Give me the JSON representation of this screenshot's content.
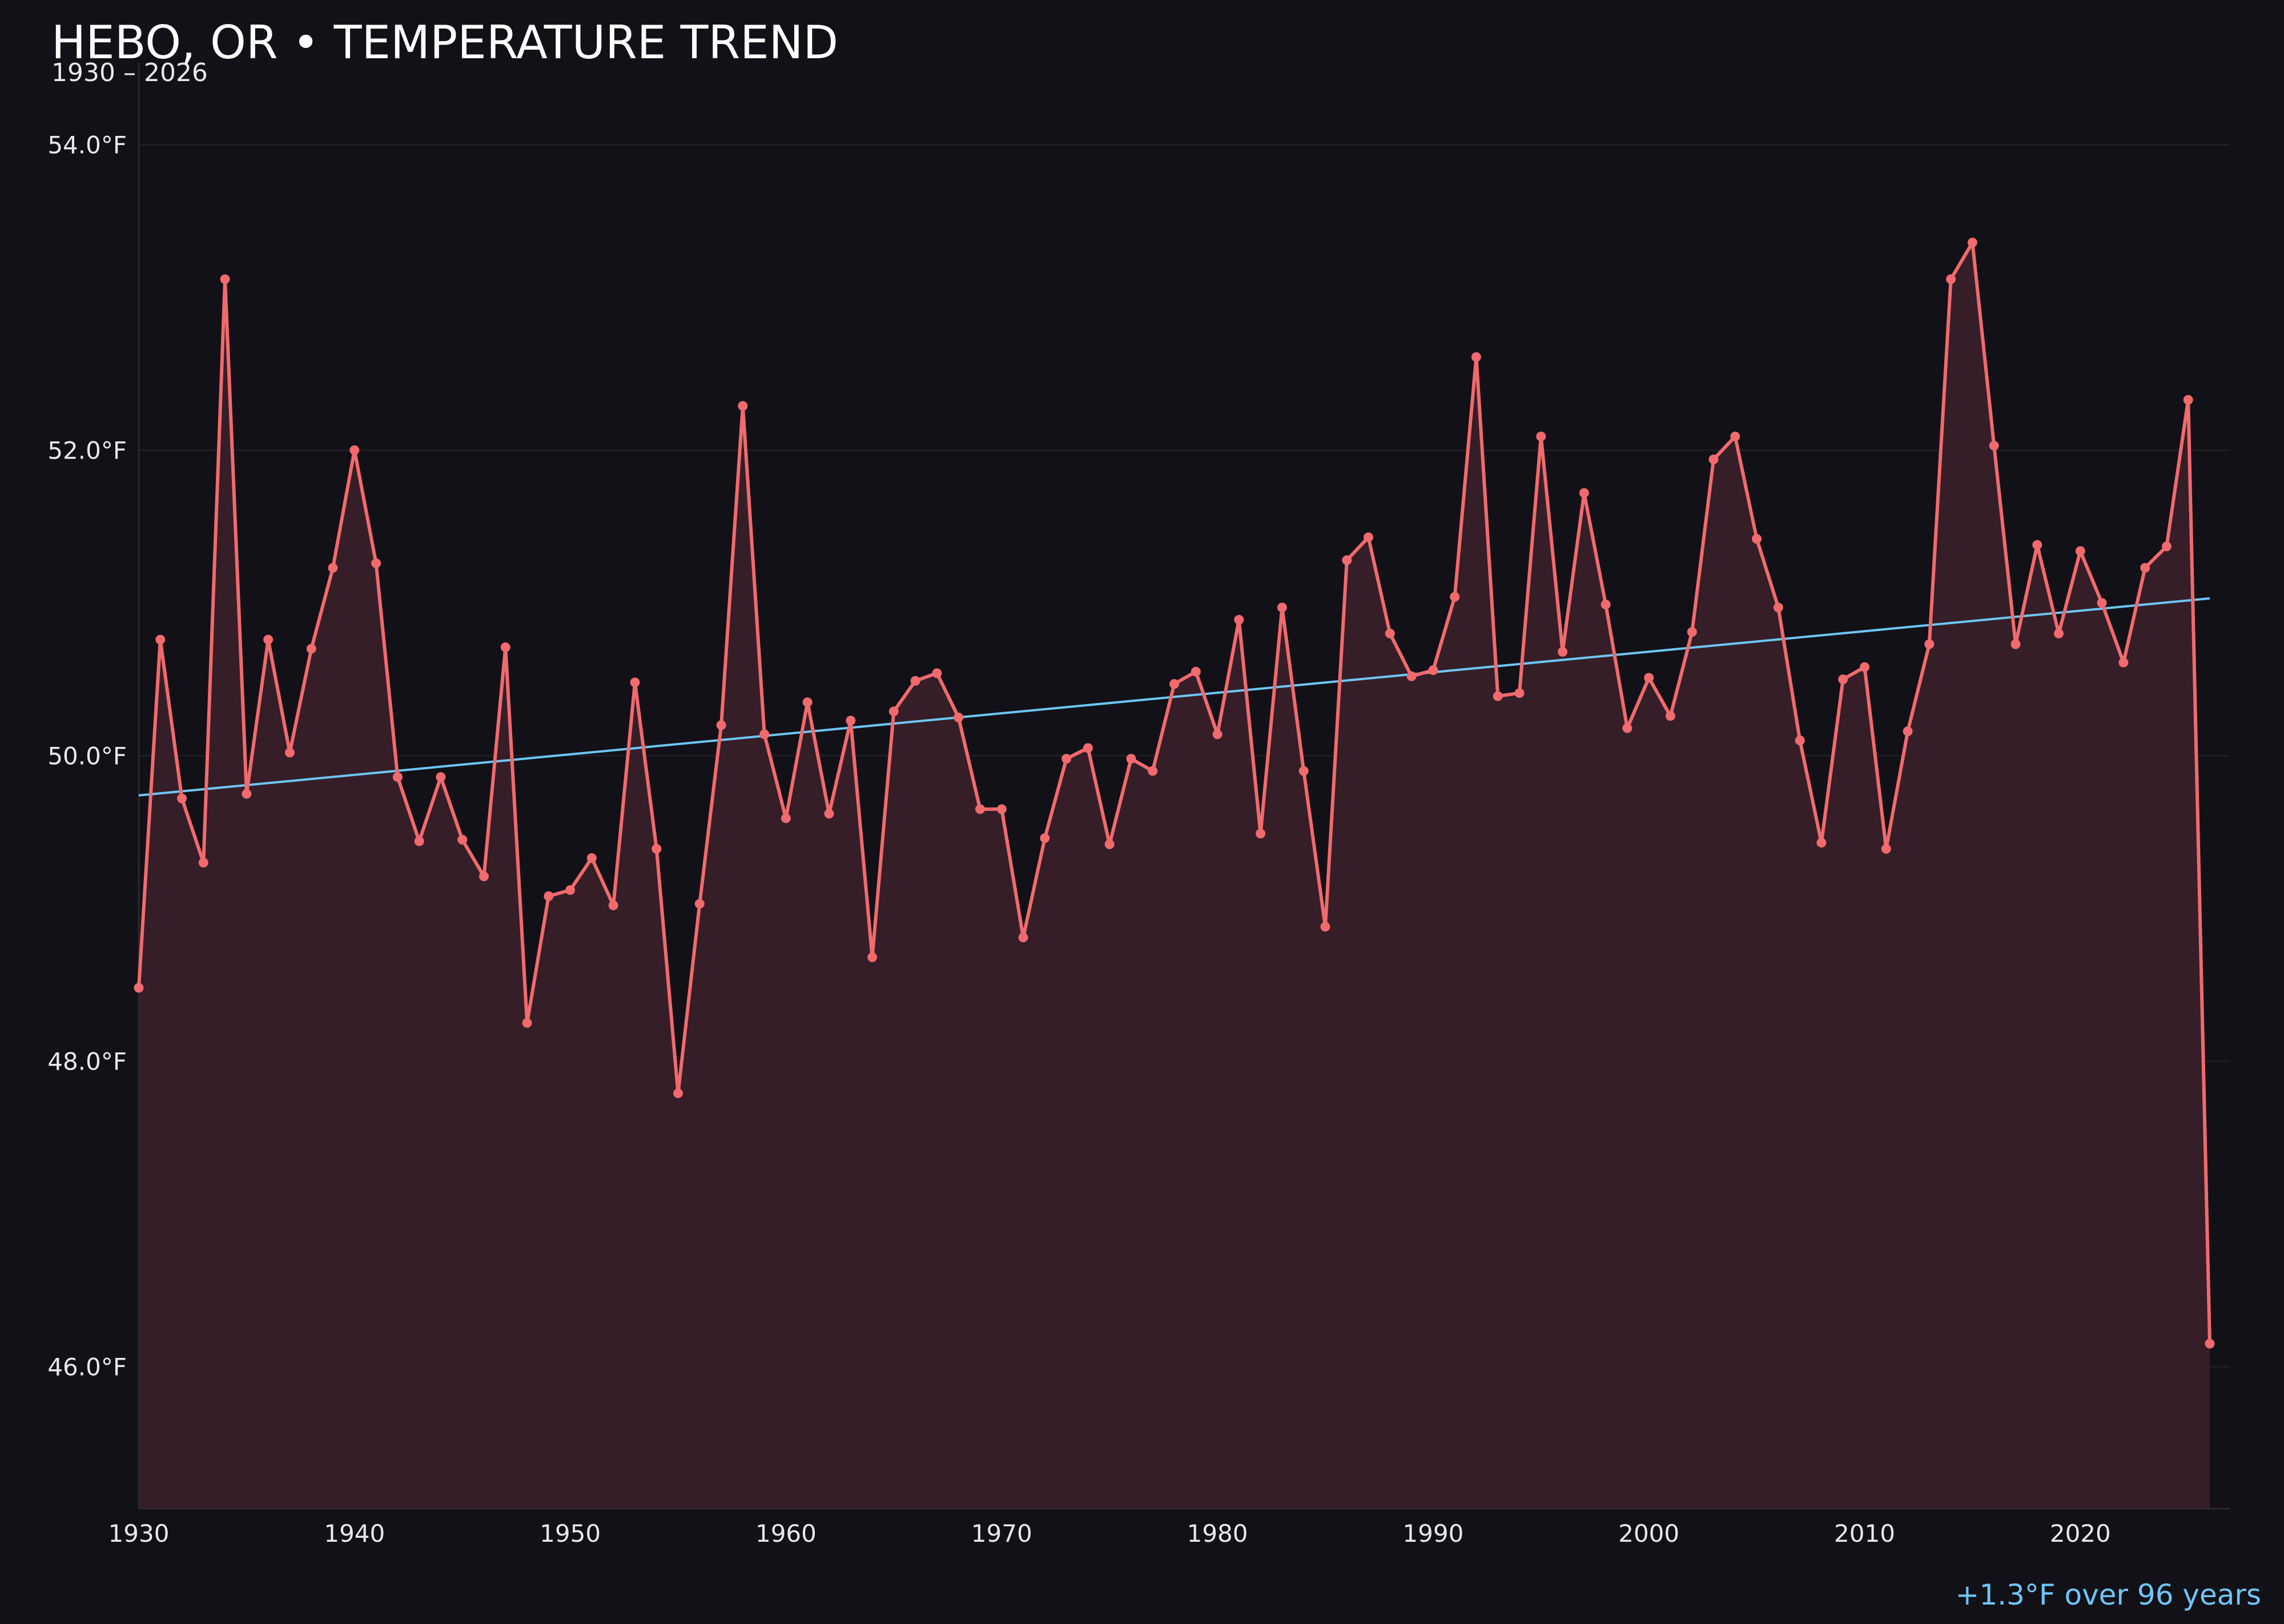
{
  "header": {
    "title": "HEBO, OR • TEMPERATURE TREND",
    "subtitle": "1930 – 2026"
  },
  "footer": {
    "trend_label": "+1.3°F over 96 years"
  },
  "colors": {
    "background": "#121117",
    "series": "#f06a6e",
    "area": "#351e27",
    "trend": "#6ec6f5",
    "grid": "#1f1e25"
  },
  "chart_data": {
    "type": "line",
    "title": "HEBO, OR • TEMPERATURE TREND",
    "subtitle": "1930 – 2026",
    "xlabel": "",
    "ylabel": "",
    "xlim": [
      1930,
      2027
    ],
    "ylim": [
      45.07,
      54.2
    ],
    "grid": true,
    "fill_under": true,
    "yticks": [
      46.0,
      48.0,
      50.0,
      52.0,
      54.0
    ],
    "ytick_labels": [
      "46.0°F",
      "48.0°F",
      "50.0°F",
      "52.0°F",
      "54.0°F"
    ],
    "xticks": [
      1930,
      1940,
      1950,
      1960,
      1970,
      1980,
      1990,
      2000,
      2010,
      2020
    ],
    "xtick_labels": [
      "1930",
      "1940",
      "1950",
      "1960",
      "1970",
      "1980",
      "1990",
      "2000",
      "2010",
      "2020"
    ],
    "series": [
      {
        "x": [
          1930,
          1931,
          1932,
          1933,
          1934,
          1935,
          1936,
          1937,
          1938,
          1939,
          1940,
          1941,
          1942,
          1943,
          1944,
          1945,
          1946,
          1947,
          1948,
          1949,
          1950,
          1951,
          1952,
          1953,
          1954,
          1955,
          1956,
          1957,
          1958,
          1959,
          1960,
          1961,
          1962,
          1963,
          1964,
          1965,
          1966,
          1967,
          1968,
          1969,
          1970,
          1971,
          1972,
          1973,
          1974,
          1975,
          1976,
          1977,
          1978,
          1979,
          1980,
          1981,
          1982,
          1983,
          1984,
          1985,
          1986,
          1987,
          1988,
          1989,
          1990,
          1991,
          1992,
          1993,
          1994,
          1995,
          1996,
          1997,
          1998,
          1999,
          2000,
          2001,
          2002,
          2003,
          2004,
          2005,
          2006,
          2007,
          2008,
          2009,
          2010,
          2011,
          2012,
          2013,
          2014,
          2015,
          2016,
          2017,
          2018,
          2019,
          2020,
          2021,
          2022,
          2023,
          2024,
          2025,
          2026
        ],
        "values": [
          48.48,
          50.76,
          49.72,
          49.3,
          53.12,
          49.75,
          50.76,
          50.02,
          50.7,
          51.23,
          52.0,
          51.26,
          49.86,
          49.44,
          49.86,
          49.45,
          49.21,
          50.71,
          48.25,
          49.08,
          49.12,
          49.33,
          49.02,
          50.48,
          49.39,
          47.79,
          49.03,
          50.2,
          52.29,
          50.14,
          49.59,
          50.35,
          49.62,
          50.23,
          48.68,
          50.29,
          50.49,
          50.54,
          50.25,
          49.65,
          49.65,
          48.81,
          49.46,
          49.98,
          50.05,
          49.42,
          49.98,
          49.9,
          50.47,
          50.55,
          50.14,
          50.89,
          49.49,
          50.97,
          49.9,
          48.88,
          51.28,
          51.43,
          50.8,
          50.52,
          50.56,
          51.04,
          52.61,
          50.39,
          50.41,
          52.09,
          50.68,
          51.72,
          50.99,
          50.18,
          50.51,
          50.26,
          50.81,
          51.94,
          52.09,
          51.42,
          50.97,
          50.1,
          49.43,
          50.5,
          50.58,
          49.39,
          50.16,
          50.73,
          53.12,
          53.36,
          52.03,
          50.73,
          51.38,
          50.8,
          51.34,
          51.0,
          50.61,
          51.23,
          51.37,
          52.33,
          46.15
        ]
      }
    ],
    "trendline": {
      "x": [
        1930,
        2026
      ],
      "y": [
        49.74,
        51.03
      ]
    }
  }
}
